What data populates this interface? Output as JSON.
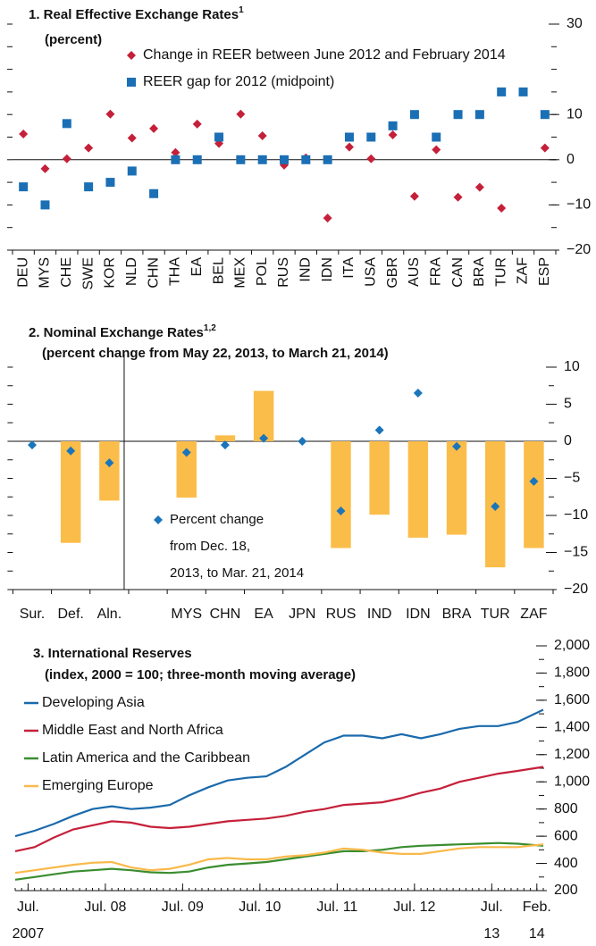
{
  "chart_data": [
    {
      "type": "dot",
      "title": "1. Real Effective Exchange Rates",
      "title_note": "1",
      "subtitle": "(percent)",
      "categories": [
        "DEU",
        "MYS",
        "CHE",
        "SWE",
        "KOR",
        "NLD",
        "CHN",
        "THA",
        "EA",
        "BEL",
        "MEX",
        "POL",
        "RUS",
        "IND",
        "IDN",
        "ITA",
        "USA",
        "GBR",
        "AUS",
        "FRA",
        "CAN",
        "BRA",
        "TUR",
        "ZAF",
        "ESP"
      ],
      "series": [
        {
          "name": "Change in REER between June 2012 and February 2014",
          "color": "#c5203a",
          "marker": "diamond",
          "values": [
            5.7,
            -2.0,
            0.2,
            2.6,
            10.1,
            4.8,
            6.9,
            1.6,
            7.9,
            3.6,
            10.1,
            5.3,
            -1.2,
            0.4,
            -12.9,
            2.8,
            0.2,
            5.5,
            -8.1,
            2.2,
            -8.3,
            -6.1,
            -10.7,
            null,
            2.6
          ]
        },
        {
          "name": "REER gap for 2012 (midpoint)",
          "color": "#1b6fb5",
          "marker": "square",
          "values": [
            -6,
            -10,
            8,
            -6,
            -5,
            -2.5,
            -7.5,
            0,
            0,
            5,
            0,
            0,
            0,
            0,
            0,
            5,
            5,
            7.5,
            10,
            5,
            10,
            10,
            15,
            15,
            10
          ]
        }
      ],
      "ylim": [
        -20,
        30
      ],
      "yticks": [
        30,
        10,
        0,
        {
          "value": -10,
          "label": "−10"
        },
        {
          "value": -20,
          "label": "−20"
        }
      ]
    },
    {
      "type": "bar",
      "title": "2. Nominal Exchange Rates",
      "title_note": "1,2",
      "subtitle": "(percent change from May 22, 2013, to March 21, 2014)",
      "categories": [
        "Sur.",
        "Def.",
        "Aln.",
        null,
        "MYS",
        "CHN",
        "EA",
        "JPN",
        "RUS",
        "IND",
        "IDN",
        "BRA",
        "TUR",
        "ZAF"
      ],
      "series": [
        {
          "color": "#fbbd4a",
          "marker": "bar",
          "values": [
            null,
            -13.7,
            -8.0,
            null,
            -7.6,
            0.8,
            6.8,
            null,
            -14.4,
            -9.9,
            -13.0,
            -12.6,
            -17.0,
            -14.4
          ]
        },
        {
          "name": "Percent change\nfrom Dec. 18,\n2013, to Mar. 21, 2014",
          "color": "#1b75bb",
          "marker": "diamond",
          "values": [
            -0.5,
            -1.3,
            -2.9,
            null,
            -1.5,
            -0.5,
            0.4,
            0,
            -9.4,
            1.5,
            6.5,
            -0.7,
            -8.8,
            -5.4
          ]
        }
      ],
      "ylim": [
        -20,
        10
      ],
      "yticks": [
        10,
        5,
        0,
        {
          "value": -5,
          "label": "−5"
        },
        {
          "value": -10,
          "label": "−10"
        },
        {
          "value": -15,
          "label": "−15"
        },
        {
          "value": -20,
          "label": "−20"
        }
      ]
    },
    {
      "type": "line",
      "title": "3. International Reserves",
      "subtitle": "(index, 2000 = 100; three-month moving average)",
      "x": [
        "2007-05",
        "2007-08",
        "2007-11",
        "2008-02",
        "2008-05",
        "2008-08",
        "2008-11",
        "2009-02",
        "2009-05",
        "2009-08",
        "2009-11",
        "2010-02",
        "2010-05",
        "2010-08",
        "2010-11",
        "2011-02",
        "2011-05",
        "2011-08",
        "2011-11",
        "2012-02",
        "2012-05",
        "2012-08",
        "2012-11",
        "2013-02",
        "2013-05",
        "2013-08",
        "2013-11",
        "2014-03"
      ],
      "series": [
        {
          "name": "Developing Asia",
          "color": "#1a6aac",
          "values": [
            600,
            640,
            690,
            750,
            800,
            820,
            800,
            810,
            830,
            900,
            960,
            1010,
            1030,
            1040,
            1110,
            1200,
            1290,
            1340,
            1340,
            1320,
            1350,
            1320,
            1350,
            1390,
            1410,
            1410,
            1440,
            1530
          ]
        },
        {
          "name": "Middle East and North Africa",
          "color": "#c5203a",
          "values": [
            490,
            520,
            590,
            650,
            680,
            710,
            700,
            670,
            660,
            670,
            690,
            710,
            720,
            730,
            750,
            780,
            800,
            830,
            840,
            850,
            880,
            920,
            950,
            1000,
            1030,
            1060,
            1080,
            1110
          ]
        },
        {
          "name": "Latin America and the Caribbean",
          "color": "#3a8d2f",
          "values": [
            280,
            300,
            320,
            340,
            350,
            360,
            350,
            335,
            330,
            340,
            370,
            390,
            400,
            410,
            430,
            450,
            470,
            490,
            490,
            500,
            520,
            530,
            535,
            540,
            545,
            550,
            545,
            530
          ]
        },
        {
          "name": "Emerging Europe",
          "color": "#f9b94a",
          "values": [
            330,
            350,
            370,
            390,
            405,
            410,
            370,
            350,
            360,
            390,
            430,
            440,
            430,
            430,
            450,
            460,
            480,
            510,
            500,
            480,
            470,
            470,
            490,
            510,
            520,
            520,
            520,
            540
          ]
        }
      ],
      "xlim": [
        "2007-05",
        "2014-03"
      ],
      "xticks": [
        {
          "value": "2007-07",
          "label": "Jul.\n2007"
        },
        {
          "value": "2008-07",
          "label": "Jul. 08"
        },
        {
          "value": "2009-07",
          "label": "Jul. 09"
        },
        {
          "value": "2010-07",
          "label": "Jul. 10"
        },
        {
          "value": "2011-07",
          "label": "Jul. 11"
        },
        {
          "value": "2012-07",
          "label": "Jul. 12"
        },
        {
          "value": "2013-07",
          "label": "Jul.\n13"
        },
        {
          "value": "2014-02",
          "label": "Feb.\n14"
        }
      ],
      "ylim": [
        200,
        2000
      ],
      "yticks": [
        {
          "value": 2000,
          "label": "2,000"
        },
        {
          "value": 1800,
          "label": "1,800"
        },
        {
          "value": 1600,
          "label": "1,600"
        },
        {
          "value": 1400,
          "label": "1,400"
        },
        {
          "value": 1200,
          "label": "1,200"
        },
        {
          "value": 1000,
          "label": "1,000"
        },
        800,
        600,
        400,
        200
      ]
    }
  ]
}
